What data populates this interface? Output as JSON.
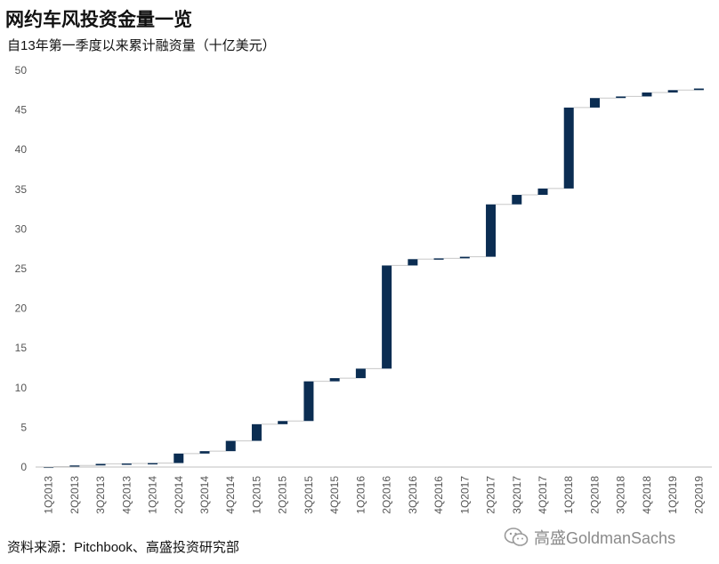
{
  "title": "网约车风投资金量一览",
  "subtitle": "自13年第一季度以来累计融资量（十亿美元）",
  "source": "资料来源：Pitchbook、高盛投资研究部",
  "watermark": {
    "icon": "wechat-icon",
    "text": "高盛GoldmanSachs",
    "color": "#8a8a8a"
  },
  "chart_data": {
    "type": "bar",
    "subtype": "waterfall",
    "title": "网约车风投资金量一览",
    "subtitle": "自13年第一季度以来累计融资量（十亿美元）",
    "xlabel": "",
    "ylabel": "",
    "ylim": [
      0,
      50
    ],
    "yticks": [
      0,
      5,
      10,
      15,
      20,
      25,
      30,
      35,
      40,
      45,
      50
    ],
    "grid": false,
    "legend": "none",
    "bar_color": "#0b2d52",
    "connector_color": "#c8c8c8",
    "categories": [
      "1Q2013",
      "2Q2013",
      "3Q2013",
      "4Q2013",
      "1Q2014",
      "2Q2014",
      "3Q2014",
      "4Q2014",
      "1Q2015",
      "2Q2015",
      "3Q2015",
      "4Q2015",
      "1Q2016",
      "2Q2016",
      "3Q2016",
      "4Q2016",
      "1Q2017",
      "2Q2017",
      "3Q2017",
      "4Q2017",
      "1Q2018",
      "2Q2018",
      "3Q2018",
      "4Q2018",
      "1Q2019",
      "2Q2019"
    ],
    "cumulative": [
      0.05,
      0.2,
      0.4,
      0.45,
      0.5,
      1.7,
      2.0,
      3.3,
      5.4,
      5.8,
      10.8,
      11.2,
      12.4,
      25.4,
      26.2,
      26.3,
      26.5,
      33.1,
      34.3,
      35.1,
      45.3,
      46.5,
      46.7,
      47.2,
      47.5,
      47.7
    ],
    "increments": [
      0.05,
      0.15,
      0.2,
      0.05,
      0.05,
      1.2,
      0.3,
      1.3,
      2.1,
      0.4,
      5.0,
      0.4,
      1.2,
      13.0,
      0.8,
      0.1,
      0.2,
      6.6,
      1.2,
      0.8,
      10.2,
      1.2,
      0.2,
      0.5,
      0.3,
      0.2
    ]
  }
}
